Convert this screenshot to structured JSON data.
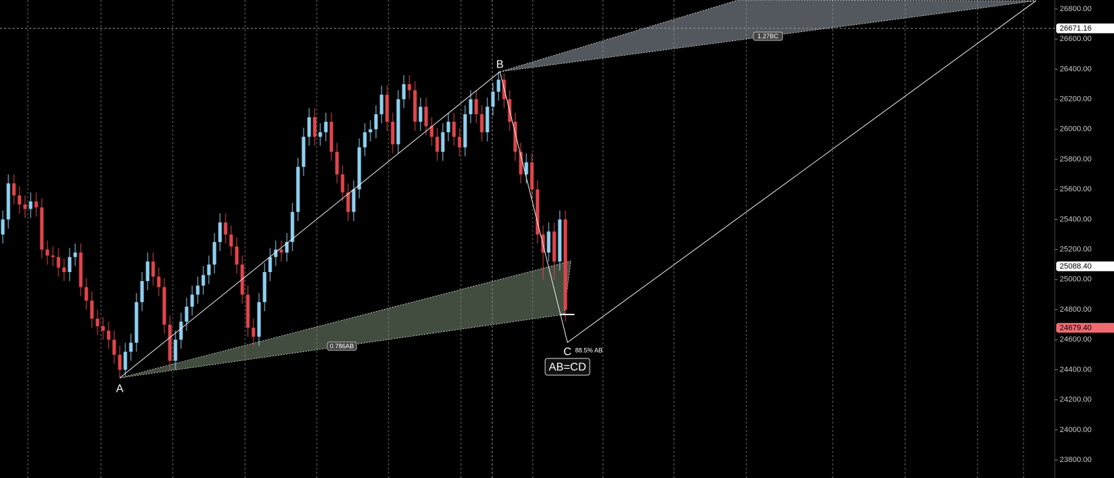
{
  "chart_data": {
    "type": "candlestick",
    "up_color": "#8fd0f0",
    "down_color": "#e0454b",
    "xlim": [
      -0.5,
      188.875
    ],
    "ylim": [
      23680,
      26860
    ],
    "yticks": [
      {
        "value": 23800,
        "label": "23800.00"
      },
      {
        "value": 24000,
        "label": "24000.00"
      },
      {
        "value": 24200,
        "label": "24200.00"
      },
      {
        "value": 24400,
        "label": "24400.00"
      },
      {
        "value": 24600,
        "label": "24600.00"
      },
      {
        "value": 24800,
        "label": "24800.00"
      },
      {
        "value": 25000,
        "label": "25000.00"
      },
      {
        "value": 25200,
        "label": "25200.00"
      },
      {
        "value": 25400,
        "label": "25400.00"
      },
      {
        "value": 25600,
        "label": "25600.00"
      },
      {
        "value": 25800,
        "label": "25800.00"
      },
      {
        "value": 26000,
        "label": "26000.00"
      },
      {
        "value": 26200,
        "label": "26200.00"
      },
      {
        "value": 26400,
        "label": "26400.00"
      },
      {
        "value": 26600,
        "label": "26600.00"
      },
      {
        "value": 26800,
        "label": "26800.00"
      }
    ],
    "x": [
      0,
      1,
      2,
      3,
      4,
      5,
      6,
      7,
      8,
      9,
      10,
      11,
      12,
      13,
      14,
      15,
      16,
      17,
      18,
      19,
      20,
      21,
      22,
      23,
      24,
      25,
      26,
      27,
      28,
      29,
      30,
      31,
      32,
      33,
      34,
      35,
      36,
      37,
      38,
      39,
      40,
      41,
      42,
      43,
      44,
      45,
      46,
      47,
      48,
      49,
      50,
      51,
      52,
      53,
      54,
      55,
      56,
      57,
      58,
      59,
      60,
      61,
      62,
      63,
      64,
      65,
      66,
      67,
      68,
      69,
      70,
      71,
      72,
      73,
      74,
      75,
      76,
      77,
      78,
      79,
      80,
      81,
      82,
      83,
      84,
      85,
      86,
      87,
      88,
      89,
      90,
      91,
      92,
      93,
      94,
      95,
      96,
      97,
      98,
      99,
      100,
      101
    ],
    "open": [
      25300,
      25400,
      25640,
      25560,
      25500,
      25470,
      25520,
      25480,
      25200,
      25160,
      25150,
      25080,
      25050,
      25150,
      25180,
      24950,
      24860,
      24740,
      24690,
      24660,
      24600,
      24500,
      24400,
      24520,
      24580,
      24850,
      24990,
      25120,
      25020,
      24950,
      24700,
      24460,
      24600,
      24720,
      24820,
      24900,
      24960,
      25030,
      25100,
      25250,
      25380,
      25300,
      25220,
      25100,
      24900,
      24680,
      24620,
      24850,
      25050,
      25150,
      25200,
      25180,
      25250,
      25450,
      25750,
      25950,
      26080,
      25950,
      25980,
      26050,
      25850,
      25700,
      25580,
      25450,
      25600,
      25880,
      25980,
      26000,
      26100,
      26230,
      26050,
      25900,
      26200,
      26300,
      26260,
      26050,
      26150,
      26020,
      25950,
      25850,
      25980,
      26050,
      25950,
      25880,
      26100,
      26200,
      26100,
      25980,
      26150,
      26250,
      26330,
      26200,
      26050,
      25850,
      25700,
      25780,
      25600,
      25300,
      25180,
      25320,
      25120,
      25400
    ],
    "high": [
      25460,
      25700,
      25700,
      25620,
      25560,
      25580,
      25580,
      25540,
      25260,
      25220,
      25210,
      25140,
      25210,
      25240,
      25240,
      25010,
      24920,
      24800,
      24750,
      24720,
      24660,
      24560,
      24580,
      24640,
      24910,
      25050,
      25180,
      25180,
      25080,
      25010,
      24760,
      24660,
      24780,
      24880,
      24960,
      25020,
      25090,
      25160,
      25310,
      25440,
      25440,
      25360,
      25280,
      25160,
      24960,
      24740,
      24910,
      25110,
      25210,
      25260,
      25260,
      25310,
      25510,
      25810,
      26010,
      26140,
      26140,
      26040,
      26110,
      26110,
      25910,
      25760,
      25640,
      25660,
      25940,
      26040,
      26060,
      26160,
      26290,
      26290,
      26110,
      26260,
      26360,
      26360,
      26320,
      26210,
      26210,
      26080,
      26010,
      26040,
      26110,
      26110,
      26010,
      26160,
      26260,
      26260,
      26160,
      26210,
      26310,
      26383,
      26370,
      26260,
      26110,
      25910,
      25840,
      25840,
      25660,
      25360,
      25380,
      25380,
      25460,
      25460
    ],
    "low": [
      25240,
      25340,
      25500,
      25440,
      25410,
      25410,
      25420,
      25140,
      25100,
      25090,
      25020,
      24990,
      24990,
      25090,
      24890,
      24800,
      24680,
      24630,
      24600,
      24540,
      24440,
      24346,
      24360,
      24460,
      24520,
      24790,
      24930,
      24960,
      24890,
      24640,
      24400,
      24400,
      24540,
      24660,
      24760,
      24840,
      24900,
      24970,
      25040,
      25190,
      25240,
      25160,
      25040,
      24840,
      24620,
      24560,
      24560,
      24790,
      24990,
      25090,
      25120,
      25120,
      25190,
      25390,
      25690,
      25890,
      25890,
      25890,
      25920,
      25790,
      25640,
      25520,
      25390,
      25390,
      25540,
      25820,
      25920,
      25940,
      26040,
      25990,
      25840,
      25840,
      26140,
      26200,
      25990,
      25990,
      25960,
      25890,
      25790,
      25790,
      25920,
      25890,
      25820,
      25820,
      26040,
      26040,
      25920,
      25920,
      26090,
      26190,
      26140,
      25990,
      25790,
      25640,
      25640,
      25540,
      25240,
      25000,
      25120,
      25000,
      25060,
      24720
    ],
    "close": [
      25400,
      25640,
      25560,
      25500,
      25470,
      25520,
      25480,
      25200,
      25160,
      25150,
      25080,
      25050,
      25150,
      25180,
      24950,
      24860,
      24740,
      24690,
      24660,
      24600,
      24500,
      24400,
      24520,
      24580,
      24850,
      24990,
      25120,
      25020,
      24950,
      24700,
      24460,
      24600,
      24720,
      24820,
      24900,
      24960,
      25030,
      25100,
      25250,
      25380,
      25300,
      25220,
      25100,
      24900,
      24680,
      24620,
      24850,
      25050,
      25150,
      25200,
      25180,
      25250,
      25450,
      25750,
      25950,
      26080,
      25950,
      25980,
      26050,
      25850,
      25700,
      25580,
      25450,
      25600,
      25880,
      25980,
      26000,
      26100,
      26230,
      26050,
      25900,
      26200,
      26300,
      26260,
      26050,
      26150,
      26020,
      25950,
      25850,
      25980,
      26050,
      25950,
      25880,
      26100,
      26200,
      26100,
      25980,
      26150,
      26250,
      26330,
      26200,
      26050,
      25850,
      25700,
      25780,
      25600,
      25300,
      25180,
      25320,
      25120,
      25400,
      24800
    ],
    "pattern": {
      "points": [
        {
          "label": "A",
          "x": 21,
          "price": 24346
        },
        {
          "label": "B",
          "x": 89.25,
          "price": 26383
        },
        {
          "label": "C",
          "x": 101.375,
          "price": 24582
        },
        {
          "x": 185.5,
          "price": 26855
        }
      ],
      "lower_zone": {
        "label": "0.786AB",
        "x": [
          21,
          102,
          100.75
        ],
        "price": [
          24346,
          25124,
          24768
        ]
      },
      "upper_zone": {
        "label": "1.27BC",
        "x": [
          89.25,
          132,
          185.5
        ],
        "price": [
          26383,
          26860,
          26855
        ]
      },
      "c_note": "88.5% AB",
      "title": "AB=CD"
    },
    "crosshair": {
      "x": 87.875
    },
    "price_markers": [
      {
        "value": 26671.16,
        "label": "26671.16",
        "bg": "#ffffff",
        "fg": "#000000"
      },
      {
        "value": 25088.4,
        "label": "25088.40",
        "bg": "#ffffff",
        "fg": "#000000"
      },
      {
        "value": 24679.4,
        "label": "24679.40",
        "bg": "#f06a70",
        "fg": "#000000"
      }
    ]
  }
}
